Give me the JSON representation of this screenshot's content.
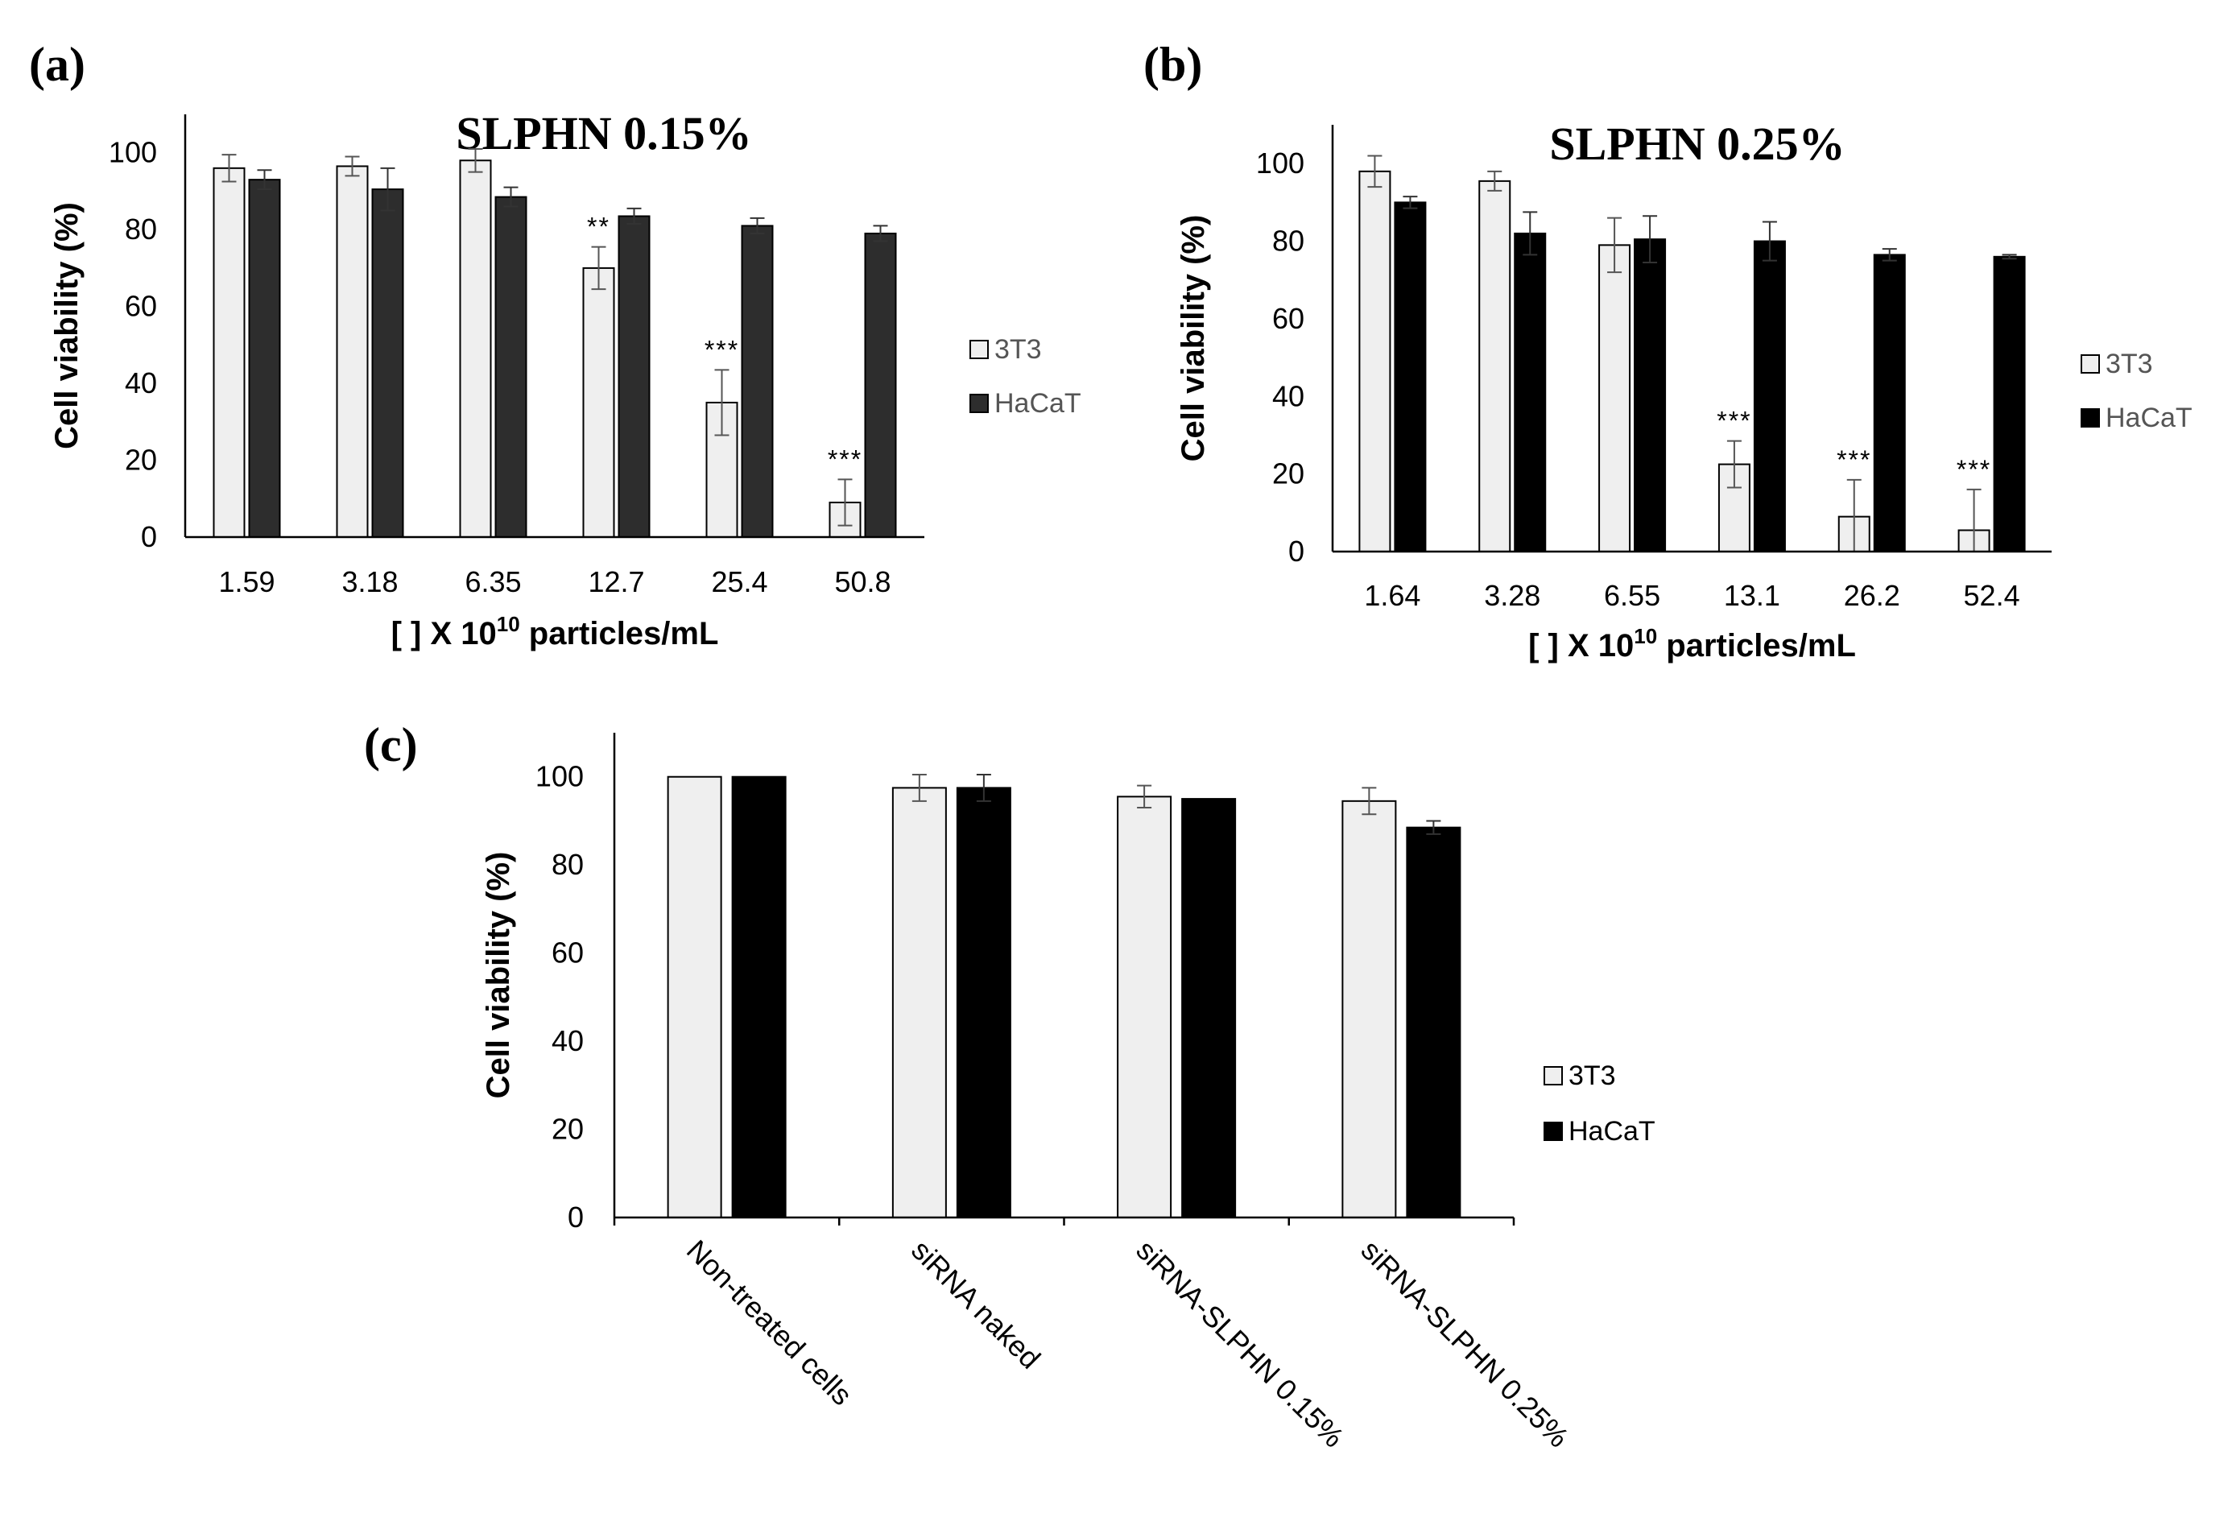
{
  "chart_data": [
    {
      "panel": "(a)",
      "type": "bar",
      "title": "SLPHN 0.15%",
      "xlabel_prefix": "[ ] X 10",
      "xlabel_sup": "10",
      "xlabel_suffix": " particles/mL",
      "ylabel": "Cell viability (%)",
      "ylim": [
        0,
        110
      ],
      "yticks": [
        0,
        20,
        40,
        60,
        80,
        100
      ],
      "categories": [
        "1.59",
        "3.18",
        "6.35",
        "12.7",
        "25.4",
        "50.8"
      ],
      "series": [
        {
          "name": "3T3",
          "values": [
            96,
            96.5,
            98,
            70,
            35,
            9
          ],
          "errors": [
            3.5,
            2.5,
            3,
            5.5,
            8.5,
            6
          ],
          "color": "#efefef"
        },
        {
          "name": "HaCaT",
          "values": [
            93,
            90.5,
            88.5,
            83.5,
            81,
            79
          ],
          "errors": [
            2.5,
            5.5,
            2.5,
            2,
            2,
            2
          ],
          "color": "#2d2d2d"
        }
      ],
      "significance": [
        "",
        "",
        "",
        "**",
        "***",
        "***"
      ],
      "legend_text_color": "#555555"
    },
    {
      "panel": "(b)",
      "type": "bar",
      "title": "SLPHN 0.25%",
      "xlabel_prefix": "[ ] X 10",
      "xlabel_sup": "10",
      "xlabel_suffix": " particles/mL",
      "ylabel": "Cell viability (%)",
      "ylim": [
        0,
        110
      ],
      "yticks": [
        0,
        20,
        40,
        60,
        80,
        100
      ],
      "categories": [
        "1.64",
        "3.28",
        "6.55",
        "13.1",
        "26.2",
        "52.4"
      ],
      "series": [
        {
          "name": "3T3",
          "values": [
            98,
            95.5,
            79,
            22.5,
            9,
            5.5
          ],
          "errors": [
            4,
            2.5,
            7,
            6,
            9.5,
            10.5
          ],
          "color": "#efefef"
        },
        {
          "name": "HaCaT",
          "values": [
            90,
            82,
            80.5,
            80,
            76.5,
            76
          ],
          "errors": [
            1.5,
            5.5,
            6,
            5,
            1.5,
            0.5
          ],
          "color": "#000000"
        }
      ],
      "significance": [
        "",
        "",
        "",
        "***",
        "***",
        "***"
      ],
      "legend_text_color": "#555555"
    },
    {
      "panel": "(c)",
      "type": "bar",
      "title": "",
      "ylabel": "Cell viability (%)",
      "ylim": [
        0,
        110
      ],
      "yticks": [
        0,
        20,
        40,
        60,
        80,
        100
      ],
      "categories": [
        "Non-treated cells",
        "siRNA naked",
        "siRNA-SLPHN 0.15%",
        "siRNA-SLPHN 0.25%"
      ],
      "series": [
        {
          "name": "3T3",
          "values": [
            100,
            97.5,
            95.5,
            94.5
          ],
          "errors": [
            0,
            3,
            2.5,
            3
          ],
          "color": "#efefef"
        },
        {
          "name": "HaCaT",
          "values": [
            100,
            97.5,
            95,
            88.5
          ],
          "errors": [
            0,
            3,
            0,
            1.5
          ],
          "color": "#000000"
        }
      ],
      "legend_text_color": "#000000"
    }
  ]
}
